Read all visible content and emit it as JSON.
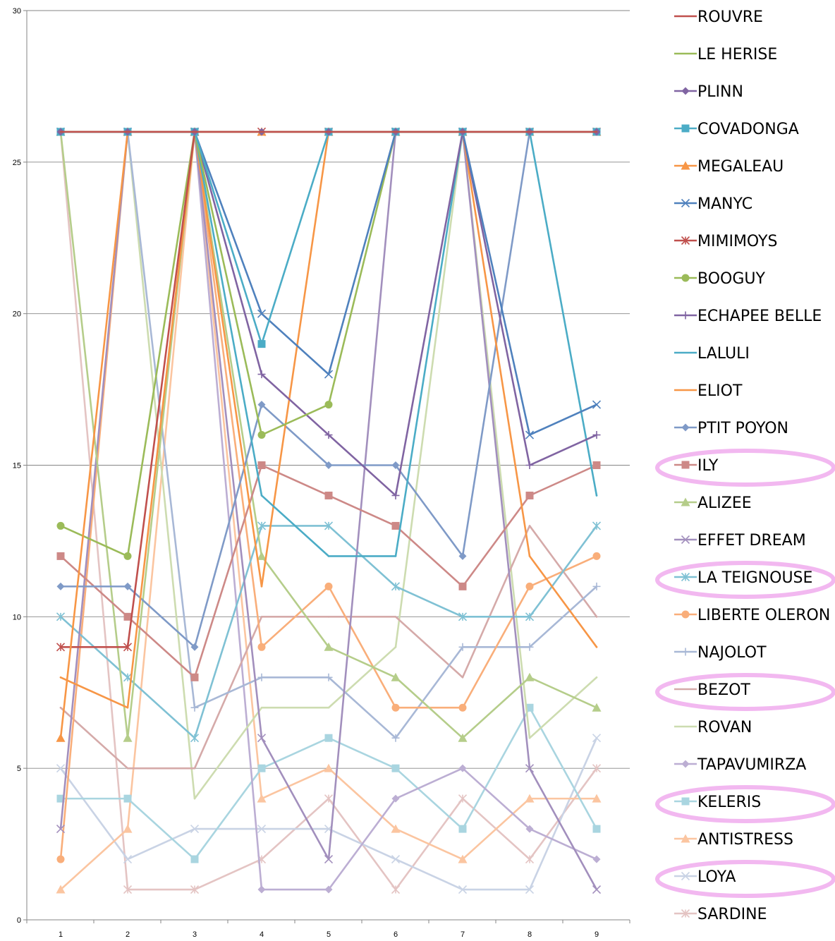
{
  "chart_data": {
    "type": "line",
    "title": "",
    "xlabel": "",
    "ylabel": "",
    "x": [
      1,
      2,
      3,
      4,
      5,
      6,
      7,
      8,
      9
    ],
    "ylim": [
      0,
      30
    ],
    "yticks": [
      0,
      5,
      10,
      15,
      20,
      25,
      30
    ],
    "grid": "horizontal",
    "legend_position": "right",
    "highlighted": [
      "ILY",
      "LA TEIGNOUSE",
      "BEZOT",
      "KELERIS",
      "LOYA"
    ],
    "highlight_color": "#f2b8f0",
    "series": [
      {
        "name": "ROUVRE",
        "color": "#c0504d",
        "marker": "none",
        "values": [
          26,
          26,
          26,
          26,
          26,
          26,
          26,
          26,
          26
        ]
      },
      {
        "name": "LE HERISE",
        "color": "#9bbb59",
        "marker": "none",
        "values": [
          26,
          26,
          26,
          26,
          26,
          26,
          26,
          26,
          26
        ]
      },
      {
        "name": "PLINN",
        "color": "#8064a2",
        "marker": "diamond",
        "values": [
          26,
          26,
          26,
          26,
          26,
          26,
          26,
          26,
          26
        ]
      },
      {
        "name": "COVADONGA",
        "color": "#4bacc6",
        "marker": "square",
        "values": [
          26,
          26,
          26,
          19,
          26,
          26,
          26,
          26,
          26
        ]
      },
      {
        "name": "MEGALEAU",
        "color": "#f79646",
        "marker": "triangle",
        "values": [
          6,
          26,
          26,
          26,
          26,
          26,
          26,
          26,
          26
        ]
      },
      {
        "name": "MANYC",
        "color": "#4f81bd",
        "marker": "x",
        "values": [
          26,
          26,
          26,
          20,
          18,
          26,
          26,
          16,
          17
        ]
      },
      {
        "name": "MIMIMOYS",
        "color": "#c0504d",
        "marker": "star",
        "values": [
          9,
          9,
          26,
          26,
          26,
          26,
          26,
          26,
          26
        ]
      },
      {
        "name": "BOOGUY",
        "color": "#9bbb59",
        "marker": "circle",
        "values": [
          13,
          12,
          26,
          16,
          17,
          26,
          26,
          26,
          26
        ]
      },
      {
        "name": "ECHAPEE BELLE",
        "color": "#8064a2",
        "marker": "plus",
        "values": [
          26,
          26,
          26,
          18,
          16,
          14,
          26,
          15,
          16
        ]
      },
      {
        "name": "LALULI",
        "color": "#4bacc6",
        "marker": "none",
        "values": [
          26,
          26,
          26,
          14,
          12,
          12,
          26,
          26,
          14
        ]
      },
      {
        "name": "ELIOT",
        "color": "#f79646",
        "marker": "none",
        "values": [
          8,
          7,
          26,
          11,
          26,
          26,
          26,
          12,
          9
        ]
      },
      {
        "name": "PTIT POYON",
        "color": "#7f9ac7",
        "marker": "diamond",
        "values": [
          11,
          11,
          9,
          17,
          15,
          15,
          12,
          26,
          26
        ]
      },
      {
        "name": "ILY",
        "color": "#cd8987",
        "marker": "square",
        "values": [
          12,
          10,
          8,
          15,
          14,
          13,
          11,
          14,
          15
        ]
      },
      {
        "name": "ALIZEE",
        "color": "#b5cd8a",
        "marker": "triangle",
        "values": [
          26,
          6,
          26,
          12,
          9,
          8,
          6,
          8,
          7
        ]
      },
      {
        "name": "EFFET DREAM",
        "color": "#a28fbd",
        "marker": "x",
        "values": [
          3,
          26,
          26,
          6,
          2,
          26,
          26,
          5,
          1
        ]
      },
      {
        "name": "LA TEIGNOUSE",
        "color": "#7fc1d4",
        "marker": "star",
        "values": [
          10,
          8,
          6,
          13,
          13,
          11,
          10,
          10,
          13
        ]
      },
      {
        "name": "LIBERTE OLERON",
        "color": "#f9ae7a",
        "marker": "circle",
        "values": [
          2,
          26,
          26,
          9,
          11,
          7,
          7,
          11,
          12
        ]
      },
      {
        "name": "NAJOLOT",
        "color": "#a8b8d6",
        "marker": "plus",
        "values": [
          26,
          26,
          7,
          8,
          8,
          6,
          9,
          9,
          11
        ]
      },
      {
        "name": "BEZOT",
        "color": "#d5aaa9",
        "marker": "none",
        "values": [
          7,
          5,
          5,
          10,
          10,
          10,
          8,
          13,
          10
        ]
      },
      {
        "name": "ROVAN",
        "color": "#cddcb0",
        "marker": "none",
        "values": [
          26,
          26,
          4,
          7,
          7,
          9,
          26,
          6,
          8
        ]
      },
      {
        "name": "TAPAVUMIRZA",
        "color": "#bcaed3",
        "marker": "diamond",
        "values": [
          26,
          26,
          26,
          1,
          1,
          4,
          5,
          3,
          2
        ]
      },
      {
        "name": "KELERIS",
        "color": "#a9d5e0",
        "marker": "square",
        "values": [
          4,
          4,
          2,
          5,
          6,
          5,
          3,
          7,
          3
        ]
      },
      {
        "name": "ANTISTRESS",
        "color": "#fbc5a0",
        "marker": "triangle",
        "values": [
          1,
          3,
          26,
          4,
          5,
          3,
          2,
          4,
          4
        ]
      },
      {
        "name": "LOYA",
        "color": "#c9d3e5",
        "marker": "x",
        "values": [
          5,
          2,
          3,
          3,
          3,
          2,
          1,
          1,
          6
        ]
      },
      {
        "name": "SARDINE",
        "color": "#e4c4c3",
        "marker": "star",
        "values": [
          26,
          1,
          1,
          2,
          4,
          1,
          4,
          2,
          5
        ]
      }
    ]
  }
}
